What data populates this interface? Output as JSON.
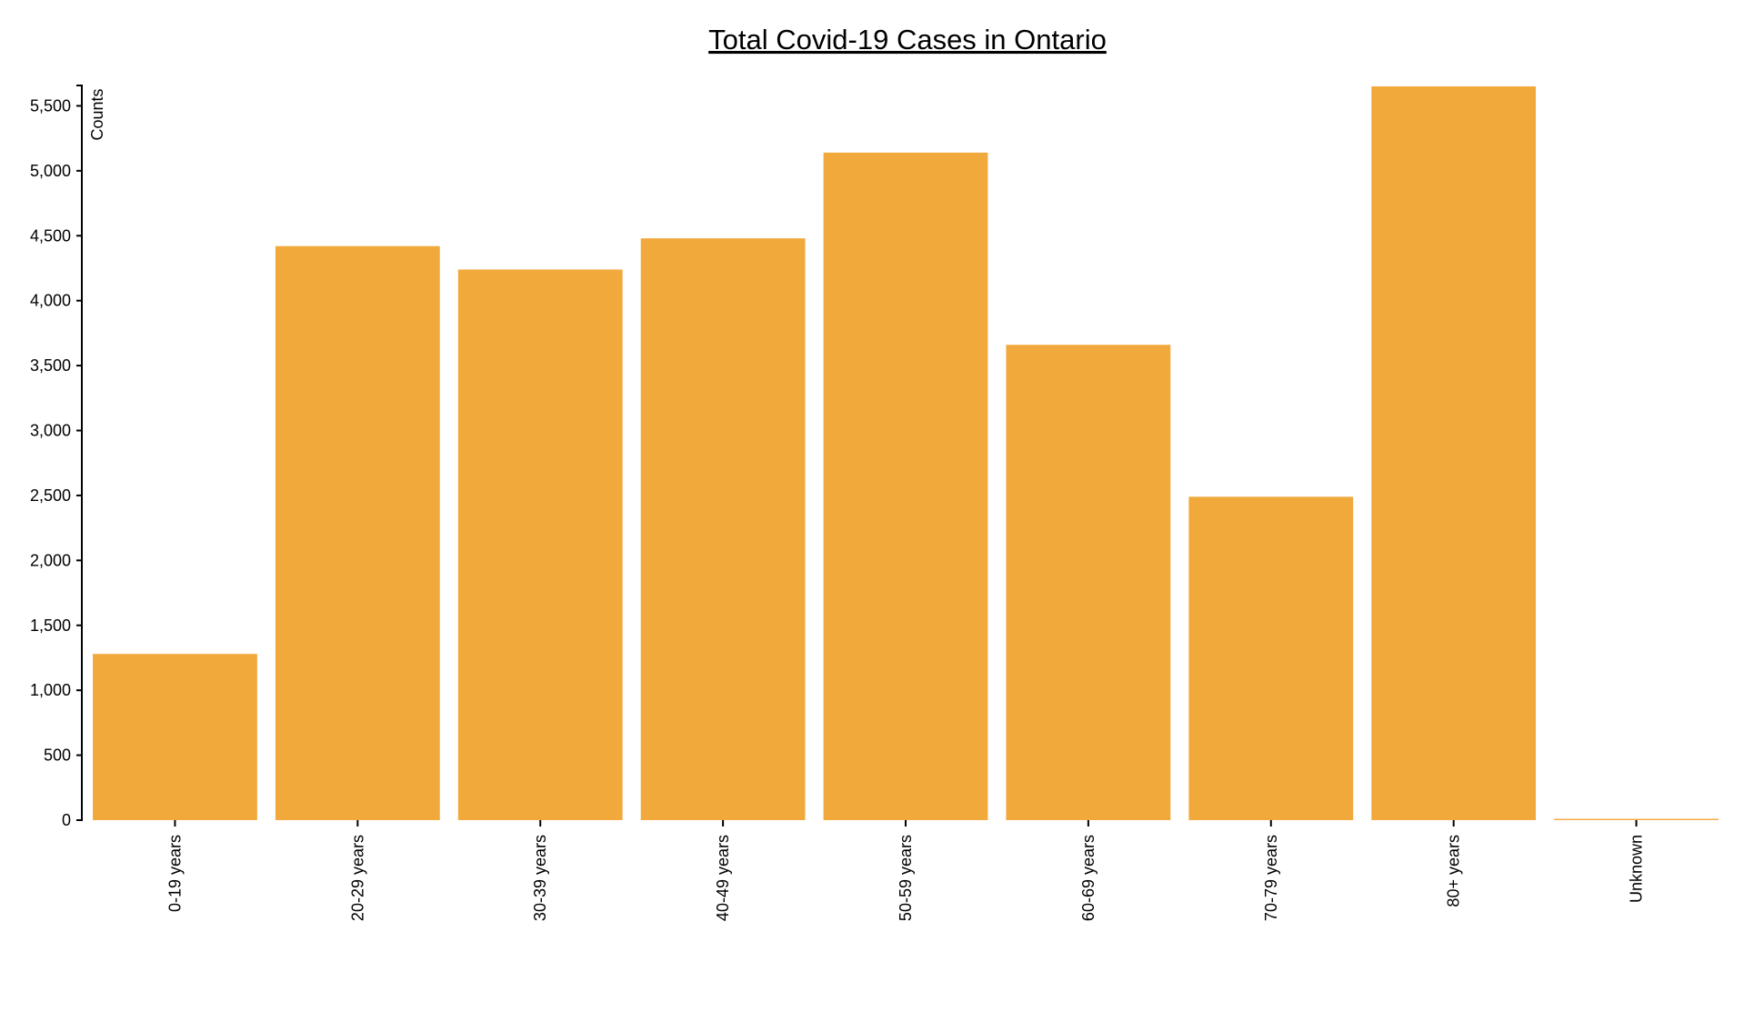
{
  "chart_data": {
    "type": "bar",
    "title": "Total Covid-19 Cases in Ontario",
    "xlabel": "",
    "ylabel": "Counts",
    "categories": [
      "0-19 years",
      "20-29 years",
      "30-39 years",
      "40-49 years",
      "50-59 years",
      "60-69 years",
      "70-79 years",
      "80+ years",
      "Unknown"
    ],
    "values": [
      1280,
      4420,
      4240,
      4480,
      5140,
      3660,
      2490,
      5650,
      10
    ],
    "ylim": [
      0,
      5650
    ],
    "yticks": [
      0,
      500,
      1000,
      1500,
      2000,
      2500,
      3000,
      3500,
      4000,
      4500,
      5000,
      5500
    ],
    "bar_color": "#f2a93b",
    "grid": false
  }
}
